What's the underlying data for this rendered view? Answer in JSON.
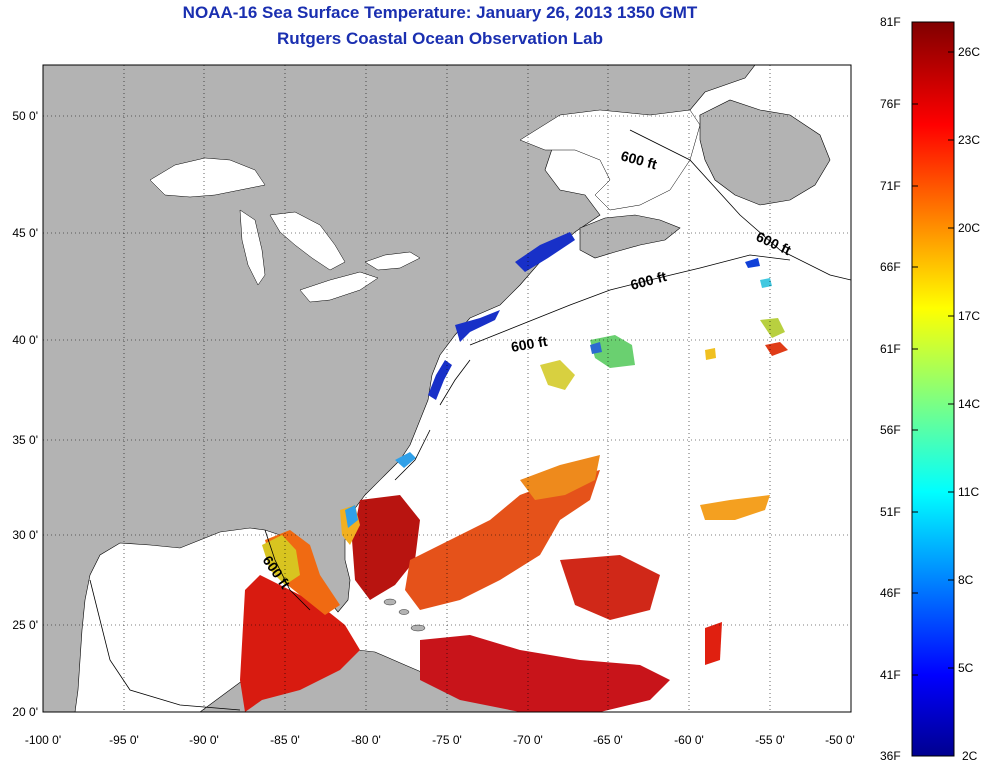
{
  "title": {
    "line1": "NOAA-16 Sea Surface Temperature:  January 26, 2013 1350 GMT",
    "line2": "Rutgers Coastal Ocean Observation Lab"
  },
  "axes": {
    "y_ticks": [
      "50 0'",
      "45 0'",
      "40 0'",
      "35 0'",
      "30 0'",
      "25 0'",
      "20 0'"
    ],
    "x_ticks": [
      "-100 0'",
      "-95 0'",
      "-90 0'",
      "-85 0'",
      "-80 0'",
      "-75 0'",
      "-70 0'",
      "-65 0'",
      "-60 0'",
      "-55 0'",
      "-50 0'"
    ]
  },
  "contour_labels": [
    "600 ft",
    "600 ft",
    "600 ft",
    "600 ft",
    "600 ft"
  ],
  "colorbar": {
    "fahrenheit": [
      "81F",
      "76F",
      "71F",
      "66F",
      "61F",
      "56F",
      "51F",
      "46F",
      "41F",
      "36F"
    ],
    "celsius": [
      "26C",
      "23C",
      "20C",
      "17C",
      "14C",
      "11C",
      "8C",
      "5C",
      "2C"
    ]
  },
  "colors": {
    "land": "#b3b3b3",
    "ocean": "#ffffff",
    "title": "#1a2fb0"
  }
}
